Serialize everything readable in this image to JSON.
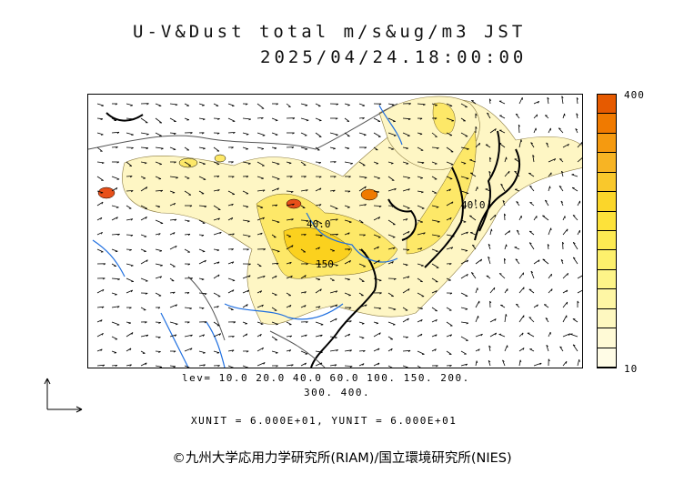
{
  "title": {
    "line1": "U-V&Dust total m/s&ug/m3 JST",
    "line2": "2025/04/24.18:00:00"
  },
  "colorbar": {
    "max_label": "400",
    "min_label": "10",
    "colors": [
      "#e65a00",
      "#f07a00",
      "#f59a10",
      "#f7b424",
      "#f9c82c",
      "#fbd62a",
      "#fde23a",
      "#fdea52",
      "#fdf06c",
      "#fdf488",
      "#fef6a4",
      "#fef8c0",
      "#fffad6",
      "#fffce6"
    ]
  },
  "map": {
    "contour_labels": [
      "40.0",
      "150",
      "40.0"
    ],
    "colors": {
      "land_fill": "#ffffff",
      "dust_light": "#fef6c4",
      "dust_mid": "#fde868",
      "dust_high": "#fbd11e",
      "dust_peak": "#e8501a",
      "coast": "#000000",
      "rivers": "#1f6fe0",
      "border": "#555555"
    }
  },
  "legend": {
    "levels_line1": "lev= 10.0 20.0 40.0 60.0 100. 150. 200.",
    "levels_line2": "300. 400.",
    "units": "XUNIT = 6.000E+01, YUNIT = 6.000E+01"
  },
  "credit": "©九州大学応用力学研究所(RIAM)/国立環境研究所(NIES)"
}
